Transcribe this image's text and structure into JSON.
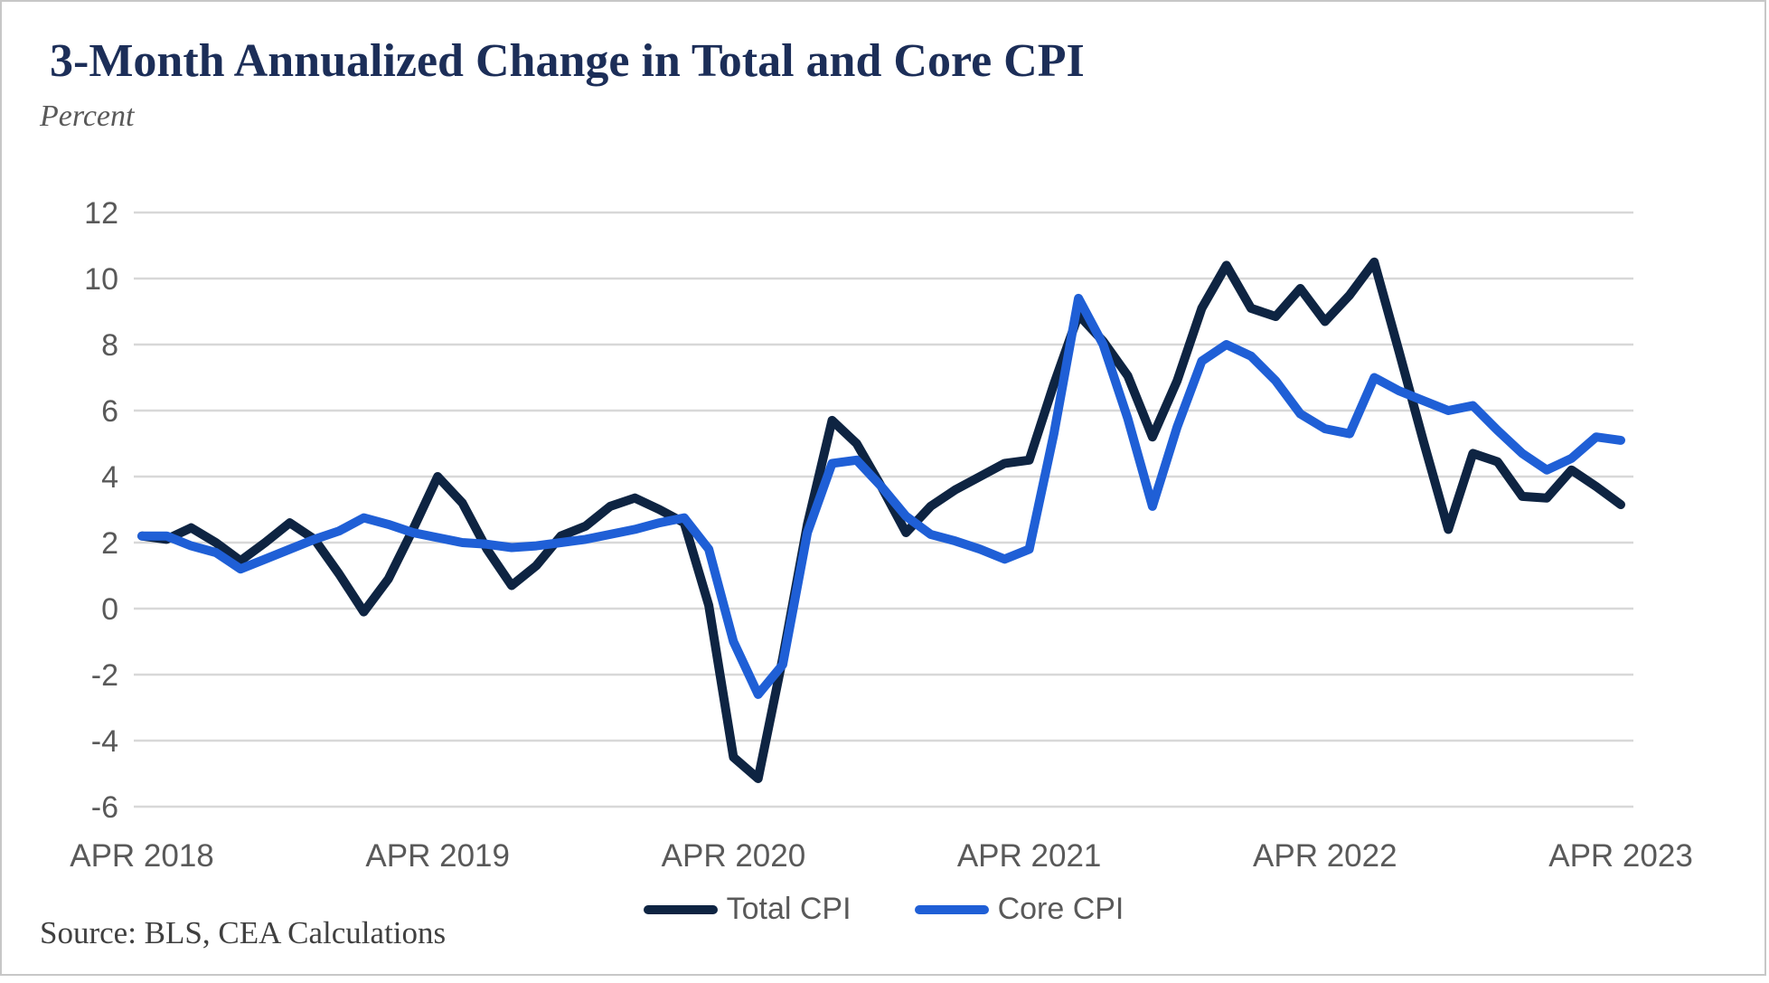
{
  "title": "3-Month Annualized Change in Total and Core CPI",
  "y_axis_unit": "Percent",
  "source": "Source: BLS, CEA Calculations",
  "colors": {
    "total_cpi": "#0e2442",
    "core_cpi": "#1f5fd6",
    "gridline": "#d8d8d8",
    "axis_text": "#595959",
    "title_text": "#1c2e58"
  },
  "legend": [
    {
      "label": "Total CPI",
      "color": "#0e2442"
    },
    {
      "label": "Core CPI",
      "color": "#1f5fd6"
    }
  ],
  "chart_data": {
    "type": "line",
    "title": "3-Month Annualized Change in Total and Core CPI",
    "ylabel": "Percent",
    "xlabel": "",
    "x_frequency": "monthly",
    "x_range": "APR 2018 to APR 2023",
    "x_tick_labels": [
      "APR 2018",
      "APR 2019",
      "APR 2020",
      "APR 2021",
      "APR 2022",
      "APR 2023"
    ],
    "y_ticks": [
      12,
      10,
      8,
      6,
      4,
      2,
      0,
      -2,
      -4,
      -6
    ],
    "ylim": [
      -6,
      12
    ],
    "grid": true,
    "legend_position": "bottom",
    "series": [
      {
        "name": "Total CPI",
        "color": "#0e2442",
        "values": [
          2.2,
          2.1,
          2.45,
          2.0,
          1.45,
          2.0,
          2.6,
          2.1,
          1.05,
          -0.1,
          0.9,
          2.4,
          4.0,
          3.2,
          1.8,
          0.7,
          1.3,
          2.2,
          2.5,
          3.1,
          3.35,
          3.0,
          2.6,
          0.1,
          -4.5,
          -5.15,
          -1.5,
          2.55,
          5.7,
          5.0,
          3.7,
          2.3,
          3.1,
          3.6,
          4.0,
          4.4,
          4.5,
          6.8,
          8.9,
          8.1,
          7.05,
          5.2,
          6.9,
          9.1,
          10.4,
          9.1,
          8.85,
          9.7,
          8.7,
          9.5,
          10.5,
          7.8,
          5.05,
          2.4,
          4.7,
          4.45,
          3.4,
          3.35,
          4.2,
          3.7,
          3.15
        ]
      },
      {
        "name": "Core CPI",
        "color": "#1f5fd6",
        "values": [
          2.2,
          2.2,
          1.9,
          1.7,
          1.2,
          1.5,
          1.8,
          2.1,
          2.35,
          2.75,
          2.55,
          2.3,
          2.15,
          2.0,
          1.95,
          1.85,
          1.9,
          2.0,
          2.1,
          2.25,
          2.4,
          2.6,
          2.75,
          1.8,
          -1.0,
          -2.6,
          -1.7,
          2.3,
          4.4,
          4.5,
          3.7,
          2.8,
          2.25,
          2.05,
          1.8,
          1.5,
          1.8,
          5.3,
          9.4,
          8.0,
          5.75,
          3.1,
          5.5,
          7.5,
          8.0,
          7.65,
          6.9,
          5.9,
          5.45,
          5.3,
          7.0,
          6.6,
          6.3,
          6.0,
          6.15,
          5.4,
          4.7,
          4.2,
          4.55,
          5.2,
          5.1
        ]
      }
    ]
  }
}
